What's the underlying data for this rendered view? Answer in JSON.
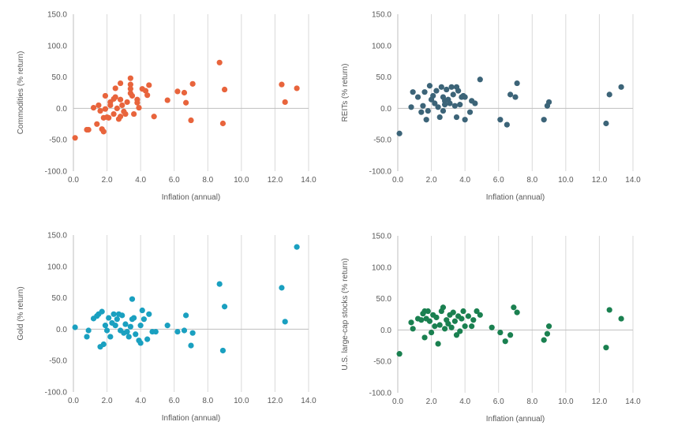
{
  "chart_data": [
    {
      "type": "scatter",
      "xlabel": "Inflation (annual)",
      "ylabel": "Commodities (% return)",
      "xlim": [
        0,
        14
      ],
      "ylim": [
        -100,
        150
      ],
      "xticks": [
        "0.0",
        "2.0",
        "4.0",
        "6.0",
        "8.0",
        "10.0",
        "12.0",
        "14.0"
      ],
      "yticks": [
        "150.0",
        "100.0",
        "50.0",
        "0.0",
        "-50.0",
        "-100.0"
      ],
      "grid": "vertical",
      "color": "#E8643C",
      "points": [
        [
          0.1,
          -47
        ],
        [
          0.8,
          -34
        ],
        [
          0.9,
          -34
        ],
        [
          1.2,
          1
        ],
        [
          1.4,
          -25
        ],
        [
          1.5,
          5
        ],
        [
          1.6,
          -4
        ],
        [
          1.7,
          -33
        ],
        [
          1.8,
          -37
        ],
        [
          1.8,
          -15
        ],
        [
          1.9,
          20
        ],
        [
          1.9,
          -1
        ],
        [
          2.0,
          -14
        ],
        [
          2.1,
          -15
        ],
        [
          2.2,
          10
        ],
        [
          2.2,
          5
        ],
        [
          2.4,
          15
        ],
        [
          2.4,
          -9
        ],
        [
          2.5,
          32
        ],
        [
          2.5,
          18
        ],
        [
          2.6,
          0
        ],
        [
          2.7,
          -17
        ],
        [
          2.8,
          40
        ],
        [
          2.8,
          14
        ],
        [
          2.8,
          -13
        ],
        [
          2.9,
          5
        ],
        [
          3.0,
          -5
        ],
        [
          3.1,
          -9
        ],
        [
          3.2,
          10
        ],
        [
          3.4,
          48
        ],
        [
          3.4,
          38
        ],
        [
          3.4,
          31
        ],
        [
          3.4,
          24
        ],
        [
          3.5,
          20
        ],
        [
          3.6,
          -9
        ],
        [
          3.8,
          14
        ],
        [
          3.8,
          9
        ],
        [
          3.9,
          1
        ],
        [
          4.1,
          31
        ],
        [
          4.3,
          28
        ],
        [
          4.4,
          21
        ],
        [
          4.5,
          37
        ],
        [
          4.8,
          -13
        ],
        [
          5.6,
          13
        ],
        [
          6.2,
          27
        ],
        [
          6.6,
          25
        ],
        [
          6.7,
          9
        ],
        [
          7.0,
          -19
        ],
        [
          7.1,
          39
        ],
        [
          8.7,
          73
        ],
        [
          8.9,
          -24
        ],
        [
          9.0,
          30
        ],
        [
          12.4,
          38
        ],
        [
          12.6,
          10
        ],
        [
          13.3,
          32
        ]
      ]
    },
    {
      "type": "scatter",
      "xlabel": "Inflation (annual)",
      "ylabel": "REITs (% return)",
      "xlim": [
        0,
        14
      ],
      "ylim": [
        -100,
        150
      ],
      "xticks": [
        "0.0",
        "2.0",
        "4.0",
        "6.0",
        "8.0",
        "10.0",
        "12.0",
        "14.0"
      ],
      "yticks": [
        "150.0",
        "100.0",
        "50.0",
        "0.0",
        "-50.0",
        "-100.0"
      ],
      "grid": "vertical",
      "color": "#3C6478",
      "points": [
        [
          0.1,
          -40
        ],
        [
          0.8,
          2
        ],
        [
          0.9,
          26
        ],
        [
          1.2,
          18
        ],
        [
          1.4,
          -6
        ],
        [
          1.5,
          4
        ],
        [
          1.6,
          26
        ],
        [
          1.7,
          -18
        ],
        [
          1.8,
          -4
        ],
        [
          1.9,
          36
        ],
        [
          2.0,
          14
        ],
        [
          2.1,
          20
        ],
        [
          2.2,
          8
        ],
        [
          2.3,
          28
        ],
        [
          2.4,
          2
        ],
        [
          2.5,
          -14
        ],
        [
          2.6,
          34
        ],
        [
          2.7,
          18
        ],
        [
          2.7,
          -4
        ],
        [
          2.8,
          12
        ],
        [
          2.8,
          6
        ],
        [
          2.9,
          30
        ],
        [
          3.0,
          14
        ],
        [
          3.1,
          8
        ],
        [
          3.2,
          34
        ],
        [
          3.3,
          22
        ],
        [
          3.4,
          4
        ],
        [
          3.5,
          34
        ],
        [
          3.5,
          -14
        ],
        [
          3.6,
          28
        ],
        [
          3.7,
          6
        ],
        [
          3.8,
          18
        ],
        [
          3.9,
          20
        ],
        [
          4.0,
          18
        ],
        [
          4.0,
          -18
        ],
        [
          4.3,
          -6
        ],
        [
          4.4,
          12
        ],
        [
          4.6,
          8
        ],
        [
          4.9,
          46
        ],
        [
          6.1,
          -18
        ],
        [
          6.5,
          -26
        ],
        [
          6.7,
          22
        ],
        [
          7.0,
          18
        ],
        [
          7.1,
          40
        ],
        [
          8.7,
          -18
        ],
        [
          8.9,
          4
        ],
        [
          9.0,
          10
        ],
        [
          12.4,
          -24
        ],
        [
          12.6,
          22
        ],
        [
          13.3,
          34
        ]
      ]
    },
    {
      "type": "scatter",
      "xlabel": "Inflation (annual)",
      "ylabel": "Gold (% return)",
      "xlim": [
        0,
        14
      ],
      "ylim": [
        -100,
        150
      ],
      "xticks": [
        "0.0",
        "2.0",
        "4.0",
        "6.0",
        "8.0",
        "10.0",
        "12.0",
        "14.0"
      ],
      "yticks": [
        "150.0",
        "100.0",
        "50.0",
        "0.0",
        "-50.0",
        "-100.0"
      ],
      "grid": "vertical",
      "color": "#1AA0C0",
      "points": [
        [
          0.1,
          3
        ],
        [
          0.8,
          -12
        ],
        [
          0.9,
          -2
        ],
        [
          1.2,
          17
        ],
        [
          1.4,
          21
        ],
        [
          1.5,
          24
        ],
        [
          1.6,
          -28
        ],
        [
          1.7,
          28
        ],
        [
          1.8,
          -24
        ],
        [
          1.9,
          6
        ],
        [
          2.0,
          -2
        ],
        [
          2.1,
          18
        ],
        [
          2.2,
          -12
        ],
        [
          2.3,
          10
        ],
        [
          2.4,
          24
        ],
        [
          2.5,
          6
        ],
        [
          2.6,
          16
        ],
        [
          2.7,
          24
        ],
        [
          2.8,
          -2
        ],
        [
          2.9,
          22
        ],
        [
          3.0,
          -6
        ],
        [
          3.1,
          8
        ],
        [
          3.2,
          -4
        ],
        [
          3.3,
          -12
        ],
        [
          3.4,
          4
        ],
        [
          3.5,
          16
        ],
        [
          3.5,
          48
        ],
        [
          3.6,
          18
        ],
        [
          3.7,
          -8
        ],
        [
          3.9,
          -18
        ],
        [
          4.0,
          -22
        ],
        [
          4.0,
          6
        ],
        [
          4.1,
          30
        ],
        [
          4.2,
          16
        ],
        [
          4.4,
          -16
        ],
        [
          4.5,
          24
        ],
        [
          4.7,
          -4
        ],
        [
          4.9,
          -4
        ],
        [
          5.6,
          6
        ],
        [
          6.2,
          -4
        ],
        [
          6.6,
          -2
        ],
        [
          6.7,
          22
        ],
        [
          7.0,
          -26
        ],
        [
          7.1,
          -6
        ],
        [
          8.7,
          72
        ],
        [
          8.9,
          -34
        ],
        [
          9.0,
          36
        ],
        [
          12.4,
          66
        ],
        [
          12.6,
          12
        ],
        [
          13.3,
          131
        ]
      ]
    },
    {
      "type": "scatter",
      "xlabel": "Inflation (annual)",
      "ylabel": "U.S. large-cap stocks (% return)",
      "xlim": [
        0,
        14
      ],
      "ylim": [
        -100,
        150
      ],
      "xticks": [
        "0.0",
        "2.0",
        "4.0",
        "6.0",
        "8.0",
        "10.0",
        "12.0",
        "14.0"
      ],
      "yticks": [
        "150.0",
        "100.0",
        "50.0",
        "0.0",
        "-50.0",
        "-100.0"
      ],
      "grid": "vertical",
      "color": "#1A8050",
      "points": [
        [
          0.1,
          -38
        ],
        [
          0.8,
          12
        ],
        [
          0.9,
          2
        ],
        [
          1.2,
          18
        ],
        [
          1.4,
          16
        ],
        [
          1.5,
          26
        ],
        [
          1.6,
          30
        ],
        [
          1.6,
          -12
        ],
        [
          1.7,
          18
        ],
        [
          1.8,
          30
        ],
        [
          1.9,
          14
        ],
        [
          2.0,
          -4
        ],
        [
          2.1,
          24
        ],
        [
          2.2,
          6
        ],
        [
          2.3,
          20
        ],
        [
          2.4,
          -22
        ],
        [
          2.5,
          8
        ],
        [
          2.6,
          30
        ],
        [
          2.7,
          36
        ],
        [
          2.8,
          2
        ],
        [
          2.9,
          16
        ],
        [
          3.0,
          10
        ],
        [
          3.1,
          24
        ],
        [
          3.2,
          4
        ],
        [
          3.3,
          28
        ],
        [
          3.4,
          14
        ],
        [
          3.5,
          -8
        ],
        [
          3.6,
          22
        ],
        [
          3.7,
          -2
        ],
        [
          3.8,
          18
        ],
        [
          3.9,
          30
        ],
        [
          4.0,
          6
        ],
        [
          4.2,
          22
        ],
        [
          4.4,
          6
        ],
        [
          4.5,
          16
        ],
        [
          4.7,
          30
        ],
        [
          4.9,
          24
        ],
        [
          5.6,
          4
        ],
        [
          6.1,
          -4
        ],
        [
          6.4,
          -18
        ],
        [
          6.7,
          -8
        ],
        [
          6.9,
          36
        ],
        [
          7.1,
          28
        ],
        [
          8.7,
          -16
        ],
        [
          8.9,
          -6
        ],
        [
          9.0,
          6
        ],
        [
          12.4,
          -28
        ],
        [
          12.6,
          32
        ],
        [
          13.3,
          18
        ]
      ]
    }
  ]
}
